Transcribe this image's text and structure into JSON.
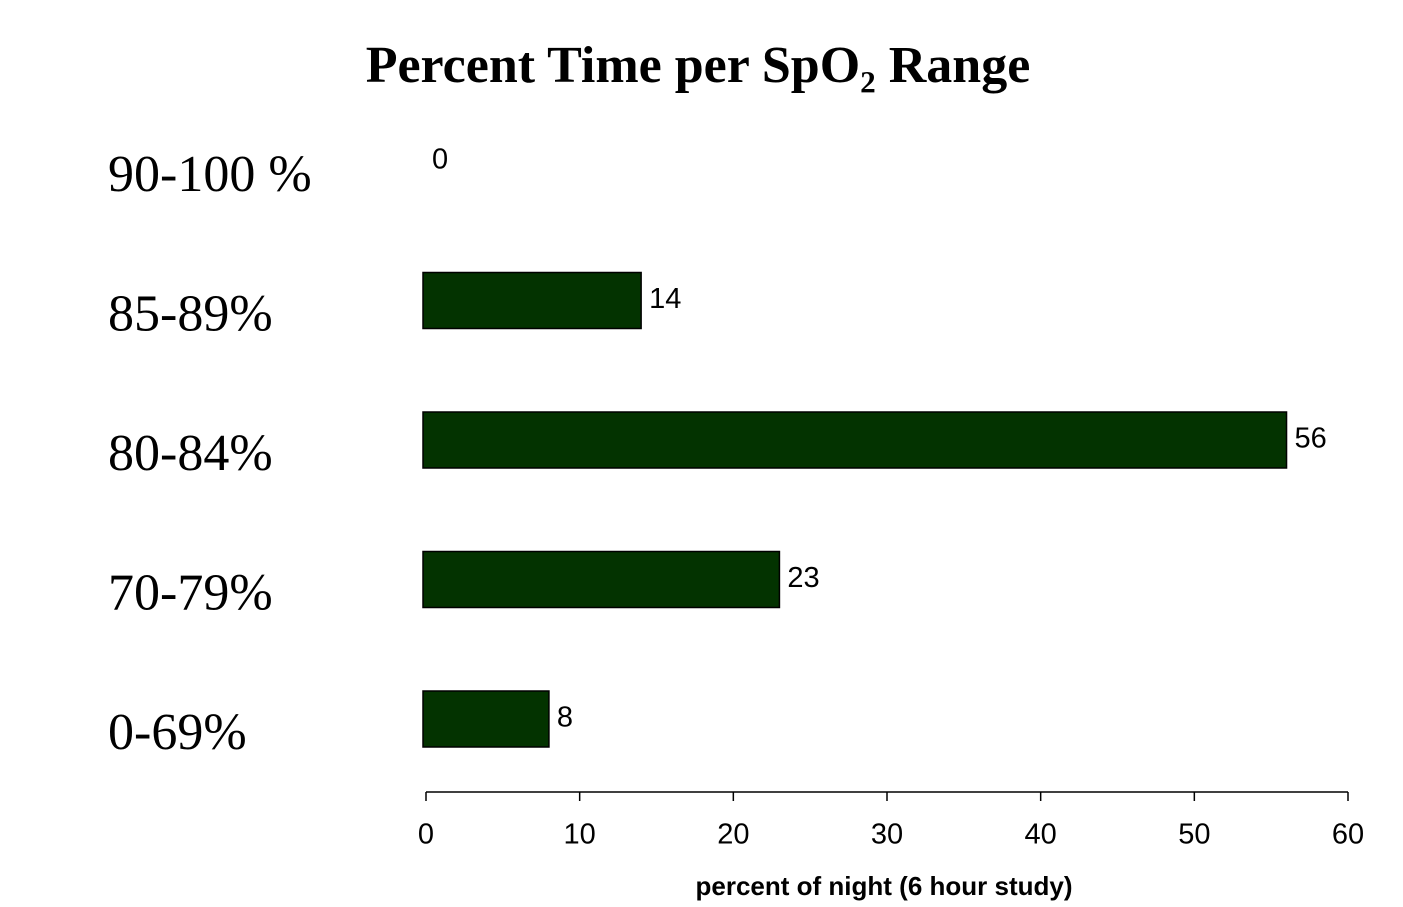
{
  "chart_data": {
    "type": "bar",
    "orientation": "horizontal",
    "title": "Percent Time per SpO₂ Range",
    "categories": [
      "90-100 %",
      "85-89%",
      "80-84%",
      "70-79%",
      "0-69%"
    ],
    "values": [
      0,
      14,
      56,
      23,
      8
    ],
    "color": "#033300",
    "xlim": [
      0,
      60
    ],
    "xticks": [
      0,
      10,
      20,
      30,
      40,
      50,
      60
    ],
    "xlabel": "percent of night (6 hour study)",
    "grid": false
  }
}
